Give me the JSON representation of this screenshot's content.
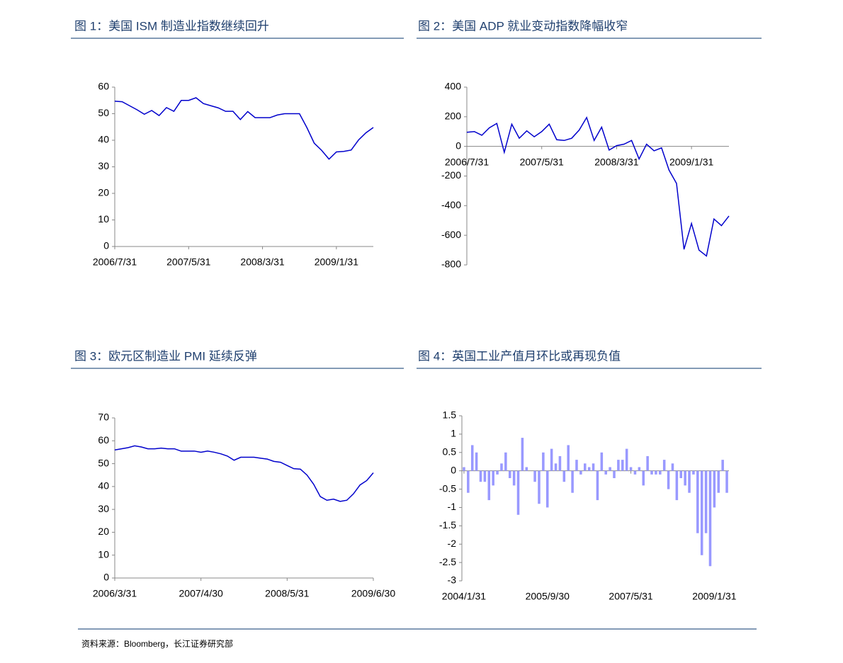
{
  "chart_data": [
    {
      "type": "line",
      "title": "图 1：美国 ISM 制造业指数继续回升",
      "color": "#0000cc",
      "categories": [
        "2006/7/31",
        null,
        null,
        null,
        null,
        null,
        null,
        null,
        null,
        null,
        "2007/5/31",
        null,
        null,
        null,
        null,
        null,
        null,
        null,
        null,
        null,
        "2008/3/31",
        null,
        null,
        null,
        null,
        null,
        null,
        null,
        null,
        null,
        "2009/1/31",
        null,
        null,
        null,
        null,
        null
      ],
      "values": [
        54.7,
        54.5,
        53,
        51.5,
        49.8,
        51.2,
        49.3,
        52.3,
        50.9,
        55,
        55,
        56,
        53.8,
        53,
        52.2,
        50.9,
        50.9,
        47.8,
        50.8,
        48.5,
        48.5,
        48.5,
        49.5,
        50,
        50,
        50,
        44.8,
        38.9,
        36.2,
        32.9,
        35.6,
        35.8,
        36.3,
        40.1,
        42.8,
        44.8
      ],
      "ylim": [
        0,
        60
      ],
      "yticks": [
        0,
        10,
        20,
        30,
        40,
        50,
        60
      ]
    },
    {
      "type": "line",
      "title": "图 2：美国 ADP 就业变动指数降幅收窄",
      "color": "#0000cc",
      "categories": [
        "2006/7/31",
        null,
        null,
        null,
        null,
        null,
        null,
        null,
        null,
        null,
        "2007/5/31",
        null,
        null,
        null,
        null,
        null,
        null,
        null,
        null,
        null,
        "2008/3/31",
        null,
        null,
        null,
        null,
        null,
        null,
        null,
        null,
        null,
        "2009/1/31",
        null,
        null,
        null,
        null,
        null
      ],
      "values": [
        95,
        100,
        75,
        125,
        155,
        -40,
        150,
        55,
        105,
        65,
        100,
        150,
        45,
        40,
        55,
        110,
        195,
        40,
        130,
        -25,
        5,
        15,
        40,
        -85,
        15,
        -30,
        -10,
        -160,
        -250,
        -695,
        -520,
        -700,
        -740,
        -490,
        -535,
        -470
      ],
      "ylim": [
        -800,
        400
      ],
      "yticks": [
        -800,
        -600,
        -400,
        -200,
        0,
        200,
        400
      ]
    },
    {
      "type": "line",
      "title": "图 3：欧元区制造业 PMI 延续反弹",
      "color": "#0000cc",
      "categories": [
        "2006/3/31",
        null,
        null,
        null,
        null,
        null,
        null,
        null,
        null,
        null,
        null,
        null,
        null,
        "2007/4/30",
        null,
        null,
        null,
        null,
        null,
        null,
        null,
        null,
        null,
        null,
        null,
        null,
        "2008/5/31",
        null,
        null,
        null,
        null,
        null,
        null,
        null,
        null,
        null,
        null,
        null,
        null,
        "2009/6/30"
      ],
      "values": [
        56,
        56.5,
        57,
        57.8,
        57.3,
        56.5,
        56.5,
        56.8,
        56.5,
        56.5,
        55.5,
        55.5,
        55.5,
        55,
        55.5,
        55,
        54.3,
        53.3,
        51.5,
        52.8,
        52.8,
        52.8,
        52.4,
        52,
        51,
        50.6,
        49.2,
        47.8,
        47.6,
        45,
        41,
        35.6,
        34,
        34.5,
        33.5,
        34,
        36.8,
        40.7,
        42.6,
        46
      ],
      "ylim": [
        0,
        70
      ],
      "yticks": [
        0,
        10,
        20,
        30,
        40,
        50,
        60,
        70
      ]
    },
    {
      "type": "bar",
      "title": "图 4：英国工业产值月环比或再现负值",
      "color": "#9999ff",
      "categories": [
        "2004/1/31",
        null,
        null,
        null,
        null,
        null,
        null,
        null,
        null,
        null,
        null,
        null,
        null,
        null,
        null,
        null,
        null,
        null,
        null,
        null,
        "2005/9/30",
        null,
        null,
        null,
        null,
        null,
        null,
        null,
        null,
        null,
        null,
        null,
        null,
        null,
        null,
        null,
        null,
        null,
        null,
        null,
        "2007/5/31",
        null,
        null,
        null,
        null,
        null,
        null,
        null,
        null,
        null,
        null,
        null,
        null,
        null,
        null,
        null,
        null,
        null,
        null,
        null,
        "2009/1/31",
        null,
        null,
        null
      ],
      "values": [
        0.1,
        -0.6,
        0.7,
        0.5,
        -0.3,
        -0.3,
        -0.8,
        -0.4,
        -0.1,
        0.2,
        0.5,
        -0.2,
        -0.4,
        -1.2,
        0.9,
        0.1,
        0,
        -0.3,
        -0.9,
        0.5,
        -1.0,
        0.6,
        0.2,
        0.4,
        -0.3,
        0.7,
        -0.6,
        0.3,
        -0.1,
        0.2,
        0.1,
        0.2,
        -0.8,
        0.5,
        -0.1,
        0.1,
        -0.2,
        0.3,
        0.3,
        0.6,
        0.1,
        -0.1,
        0.1,
        -0.4,
        0.4,
        -0.1,
        -0.1,
        -0.1,
        0.3,
        -0.5,
        0.2,
        -0.8,
        -0.2,
        -0.4,
        -0.6,
        -0.1,
        -1.7,
        -2.3,
        -1.7,
        -2.6,
        -1.0,
        -0.6,
        0.3,
        -0.6
      ],
      "ylim": [
        -3,
        1.5
      ],
      "yticks": [
        -3,
        -2.5,
        -2,
        -1.5,
        -1,
        -0.5,
        0,
        0.5,
        1,
        1.5
      ]
    }
  ],
  "source": "资料来源：Bloomberg，长江证券研究部"
}
